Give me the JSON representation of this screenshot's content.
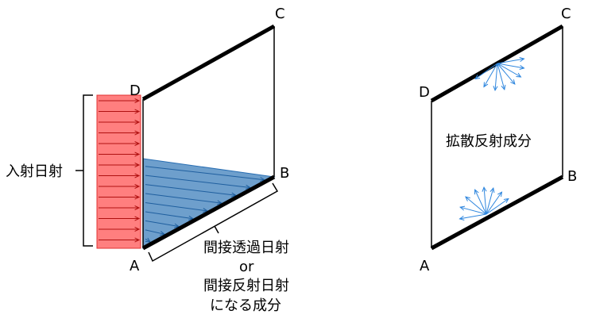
{
  "left_panel": {
    "points": {
      "a": "A",
      "b": "B",
      "c": "C",
      "d": "D"
    },
    "incident_label": "入射日射",
    "indirect_label": [
      "間接透過日射",
      "or",
      "間接反射日射",
      "になる成分"
    ]
  },
  "right_panel": {
    "points": {
      "a": "A",
      "b": "B",
      "c": "C",
      "d": "D"
    },
    "diffuse_label": "拡散反射成分"
  },
  "colors": {
    "incident_fill": "#ff7f7f",
    "incident_stroke": "#e03030",
    "indirect_fill": "#6e9fcc",
    "indirect_stroke": "#2a6fb3",
    "ray_color": "#2e86de"
  }
}
